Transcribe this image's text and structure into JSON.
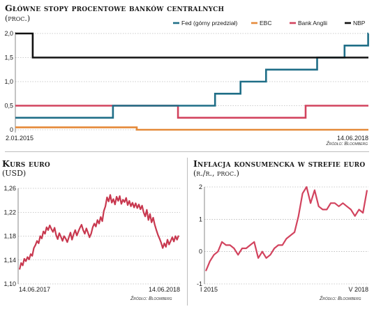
{
  "colors": {
    "fed": "#1f6e87",
    "ebc": "#e58a3a",
    "boe": "#d2435e",
    "nbp": "#111111",
    "kurs": "#c8384f",
    "inflacja": "#d2435e",
    "grid": "#9a9a9a",
    "text": "#1a1a1a"
  },
  "chart_data": [
    {
      "type": "line",
      "id": "stopy",
      "title": "Główne stopy procentowe banków centralnych",
      "subtitle": "(proc.)",
      "source": "Źródło: Bloomberg",
      "x_range": [
        "2015-01-02",
        "2018-06-14"
      ],
      "x_tick_labels": [
        "2.01.2015",
        "14.06.2018"
      ],
      "ylim": [
        0,
        2
      ],
      "y_ticks": [
        "0",
        "0,5",
        "1,0",
        "1,5",
        "2,0"
      ],
      "grid": "horizontal-dashed",
      "legend_position": "top-right",
      "series": [
        {
          "name": "Fed (górny przedział)",
          "color_key": "fed",
          "points": [
            [
              "2015-01-02",
              0.25
            ],
            [
              "2015-12-16",
              0.25
            ],
            [
              "2015-12-16",
              0.5
            ],
            [
              "2016-12-14",
              0.5
            ],
            [
              "2016-12-14",
              0.75
            ],
            [
              "2017-03-15",
              0.75
            ],
            [
              "2017-03-15",
              1.0
            ],
            [
              "2017-06-14",
              1.0
            ],
            [
              "2017-06-14",
              1.25
            ],
            [
              "2017-12-13",
              1.25
            ],
            [
              "2017-12-13",
              1.5
            ],
            [
              "2018-03-21",
              1.5
            ],
            [
              "2018-03-21",
              1.75
            ],
            [
              "2018-06-13",
              1.75
            ],
            [
              "2018-06-13",
              2.0
            ],
            [
              "2018-06-14",
              2.0
            ]
          ]
        },
        {
          "name": "EBC",
          "color_key": "ebc",
          "points": [
            [
              "2015-01-02",
              0.05
            ],
            [
              "2016-03-10",
              0.05
            ],
            [
              "2016-03-10",
              0.0
            ],
            [
              "2018-06-14",
              0.0
            ]
          ]
        },
        {
          "name": "Bank Anglii",
          "color_key": "boe",
          "points": [
            [
              "2015-01-02",
              0.5
            ],
            [
              "2016-08-04",
              0.5
            ],
            [
              "2016-08-04",
              0.25
            ],
            [
              "2017-11-02",
              0.25
            ],
            [
              "2017-11-02",
              0.5
            ],
            [
              "2018-06-14",
              0.5
            ]
          ]
        },
        {
          "name": "NBP",
          "color_key": "nbp",
          "points": [
            [
              "2015-01-02",
              2.0
            ],
            [
              "2015-03-05",
              2.0
            ],
            [
              "2015-03-05",
              1.5
            ],
            [
              "2018-06-14",
              1.5
            ]
          ]
        }
      ]
    },
    {
      "type": "line",
      "id": "kurs",
      "title": "Kurs euro",
      "subtitle": "(USD)",
      "source": "Źródło: Bloomberg",
      "x_tick_labels": [
        "14.06.2017",
        "14.06.2018"
      ],
      "ylim": [
        1.1,
        1.26
      ],
      "y_ticks": [
        "1,10",
        "1,14",
        "1,18",
        "1,22",
        "1,26"
      ],
      "grid": "horizontal-dashed",
      "series": [
        {
          "name": "",
          "color_key": "kurs",
          "x_range": [
            0,
            100
          ],
          "values": [
            1.124,
            1.135,
            1.131,
            1.142,
            1.138,
            1.145,
            1.141,
            1.15,
            1.147,
            1.16,
            1.165,
            1.172,
            1.168,
            1.18,
            1.176,
            1.188,
            1.184,
            1.195,
            1.19,
            1.198,
            1.192,
            1.187,
            1.194,
            1.182,
            1.175,
            1.185,
            1.179,
            1.172,
            1.18,
            1.176,
            1.17,
            1.178,
            1.186,
            1.174,
            1.183,
            1.19,
            1.181,
            1.188,
            1.194,
            1.199,
            1.19,
            1.184,
            1.193,
            1.186,
            1.178,
            1.184,
            1.195,
            1.201,
            1.196,
            1.207,
            1.201,
            1.212,
            1.205,
            1.222,
            1.23,
            1.245,
            1.238,
            1.249,
            1.236,
            1.242,
            1.233,
            1.246,
            1.239,
            1.247,
            1.234,
            1.241,
            1.237,
            1.244,
            1.232,
            1.239,
            1.23,
            1.236,
            1.228,
            1.235,
            1.227,
            1.233,
            1.225,
            1.231,
            1.22,
            1.213,
            1.224,
            1.207,
            1.217,
            1.203,
            1.211,
            1.199,
            1.19,
            1.182,
            1.176,
            1.169,
            1.16,
            1.168,
            1.162,
            1.174,
            1.166,
            1.172,
            1.178,
            1.171,
            1.18,
            1.174,
            1.181
          ]
        }
      ]
    },
    {
      "type": "line",
      "id": "inflacja",
      "title": "Inflacja konsumencka w strefie euro",
      "subtitle": "(r./r., proc.)",
      "source": "Źródło: Bloomberg",
      "x_tick_labels": [
        "I 2015",
        "V 2018"
      ],
      "ylim": [
        -1,
        2
      ],
      "y_ticks": [
        "-1",
        "0",
        "1",
        "2"
      ],
      "grid": "horizontal-dashed",
      "series": [
        {
          "name": "",
          "color_key": "inflacja",
          "values": [
            -0.6,
            -0.3,
            -0.1,
            0.0,
            0.3,
            0.2,
            0.2,
            0.1,
            -0.1,
            0.1,
            0.1,
            0.2,
            0.3,
            -0.2,
            0.0,
            -0.2,
            -0.1,
            0.1,
            0.2,
            0.2,
            0.4,
            0.5,
            0.6,
            1.1,
            1.8,
            2.0,
            1.5,
            1.9,
            1.4,
            1.3,
            1.3,
            1.5,
            1.5,
            1.4,
            1.5,
            1.4,
            1.3,
            1.1,
            1.3,
            1.2,
            1.9
          ]
        }
      ]
    }
  ]
}
